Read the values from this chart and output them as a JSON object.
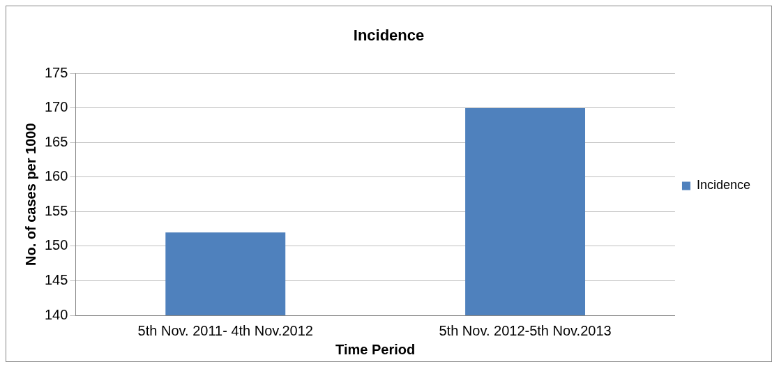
{
  "chart_data": {
    "type": "bar",
    "title": "Incidence",
    "xlabel": "Time Period",
    "ylabel": "No. of cases per 1000",
    "categories": [
      "5th Nov. 2011- 4th Nov.2012",
      "5th Nov. 2012-5th Nov.2013"
    ],
    "series": [
      {
        "name": "Incidence",
        "color": "#4f81bd",
        "values": [
          152,
          170
        ]
      }
    ],
    "ylim": [
      140,
      175
    ],
    "yticks": [
      140,
      145,
      150,
      155,
      160,
      165,
      170,
      175
    ],
    "grid": "y",
    "legend": "right"
  }
}
